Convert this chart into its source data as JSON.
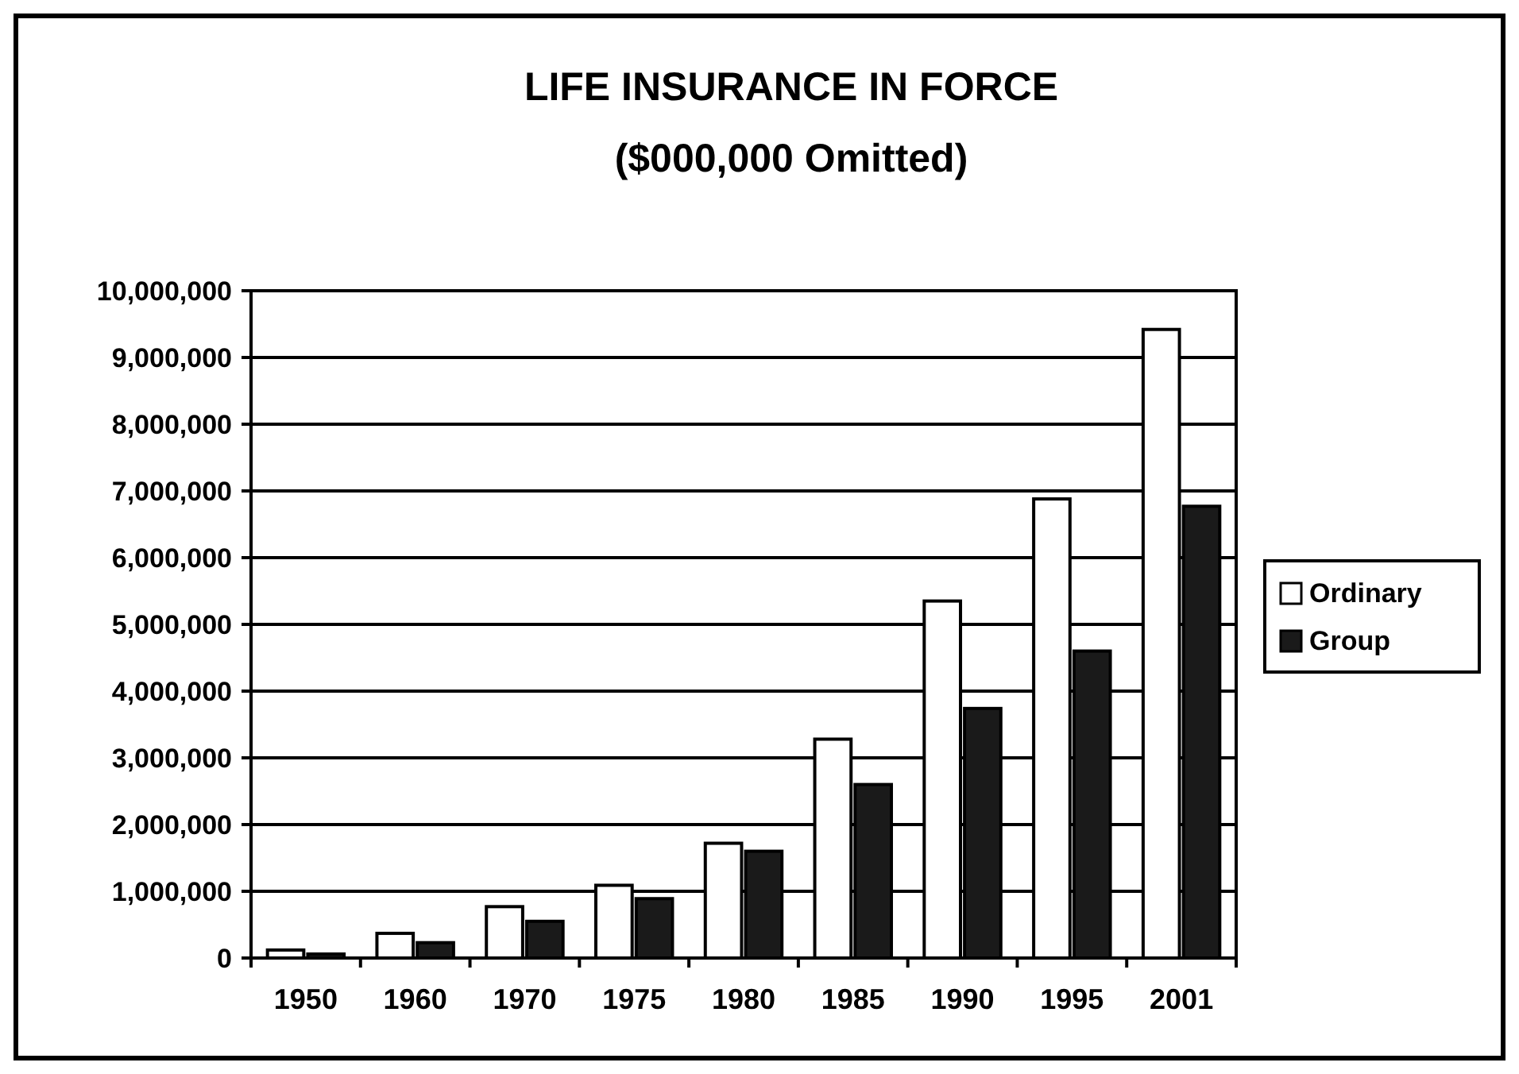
{
  "chart_data": {
    "type": "bar",
    "title": "LIFE INSURANCE IN FORCE",
    "subtitle": "($000,000 Omitted)",
    "categories": [
      "1950",
      "1960",
      "1970",
      "1975",
      "1980",
      "1985",
      "1990",
      "1995",
      "2001"
    ],
    "series": [
      {
        "name": "Ordinary",
        "color": "#ffffff",
        "values": [
          120000,
          370000,
          770000,
          1090000,
          1720000,
          3280000,
          5350000,
          6880000,
          9420000
        ]
      },
      {
        "name": "Group",
        "color": "#1a1a1a",
        "values": [
          60000,
          230000,
          550000,
          890000,
          1600000,
          2600000,
          3740000,
          4600000,
          6770000
        ]
      }
    ],
    "ylim": [
      0,
      10000000
    ],
    "yticks": [
      {
        "value": 0,
        "label": "0"
      },
      {
        "value": 1000000,
        "label": "1,000,000"
      },
      {
        "value": 2000000,
        "label": "2,000,000"
      },
      {
        "value": 3000000,
        "label": "3,000,000"
      },
      {
        "value": 4000000,
        "label": "4,000,000"
      },
      {
        "value": 5000000,
        "label": "5,000,000"
      },
      {
        "value": 6000000,
        "label": "6,000,000"
      },
      {
        "value": 7000000,
        "label": "7,000,000"
      },
      {
        "value": 8000000,
        "label": "8,000,000"
      },
      {
        "value": 9000000,
        "label": "9,000,000"
      },
      {
        "value": 10000000,
        "label": "10,000,000"
      }
    ],
    "grid": "y",
    "legend": "right"
  }
}
